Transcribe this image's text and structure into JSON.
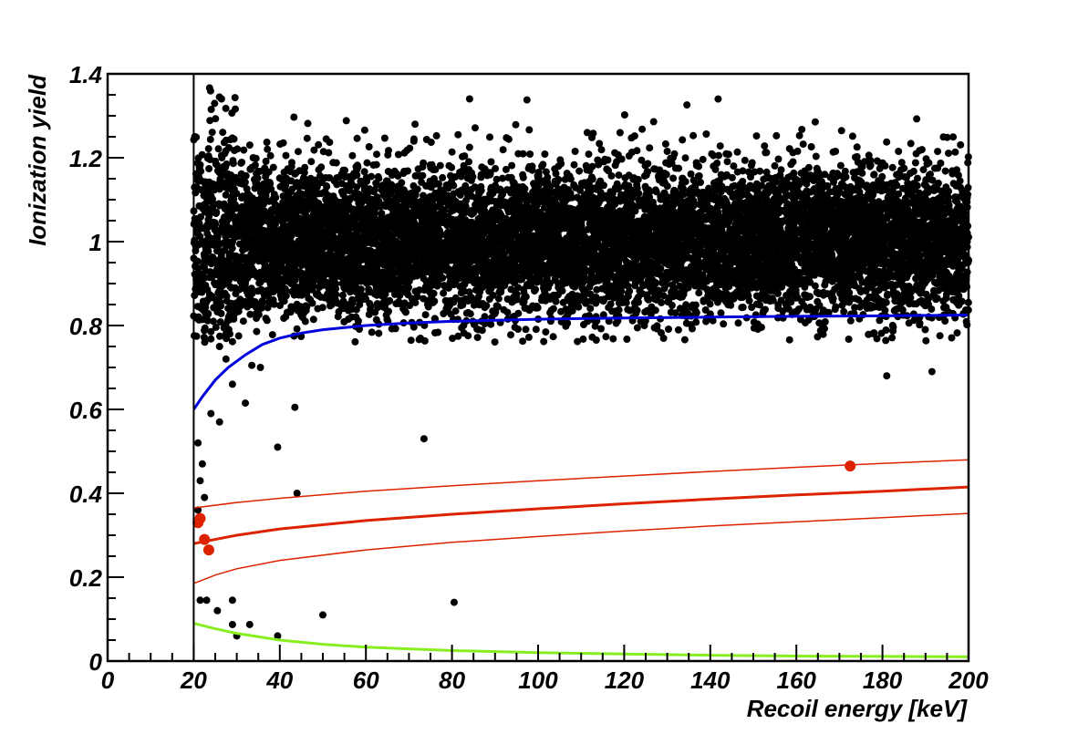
{
  "chart_data": {
    "type": "scatter",
    "xlabel": "Recoil energy [keV]",
    "ylabel": "Ionization yield",
    "xlim": [
      0,
      200
    ],
    "ylim": [
      0,
      1.4
    ],
    "x_ticks": [
      0,
      20,
      40,
      60,
      80,
      100,
      120,
      140,
      160,
      180,
      200
    ],
    "x_tick_labels": [
      "0",
      "20",
      "40",
      "60",
      "80",
      "100",
      "120",
      "140",
      "160",
      "180",
      "200"
    ],
    "y_ticks": [
      0,
      0.2,
      0.4,
      0.6,
      0.8,
      1,
      1.2,
      1.4
    ],
    "y_tick_labels": [
      "0",
      "0.2",
      "0.4",
      "0.6",
      "0.8",
      "1",
      "1.2",
      "1.4"
    ],
    "grid": false,
    "threshold_line_x": 20,
    "colors": {
      "electron_recoils": "#000000",
      "nuclear_recoil_candidates": "#dd2200",
      "electron_recoil_lower_bound": "#0000dd",
      "nuclear_recoil_band": "#dd2200",
      "gamma_cut": "#88ee22"
    },
    "electron_band_cloud": {
      "x_range": [
        20,
        200
      ],
      "y_center": 1.0,
      "y_spread": 0.09,
      "approx_point_count": 9000
    },
    "outlier_points": [
      [
        21,
        0.52
      ],
      [
        22,
        0.47
      ],
      [
        21.5,
        0.43
      ],
      [
        22.5,
        0.39
      ],
      [
        21,
        0.36
      ],
      [
        21.5,
        0.145
      ],
      [
        23,
        0.145
      ],
      [
        25.5,
        0.12
      ],
      [
        29,
        0.145
      ],
      [
        29,
        0.087
      ],
      [
        30,
        0.06
      ],
      [
        33,
        0.087
      ],
      [
        39.5,
        0.06
      ],
      [
        50,
        0.11
      ],
      [
        80.5,
        0.14
      ],
      [
        44,
        0.4
      ],
      [
        39.5,
        0.51
      ],
      [
        43.5,
        0.605
      ],
      [
        73.5,
        0.53
      ],
      [
        26,
        0.57
      ],
      [
        24,
        0.59
      ],
      [
        32,
        0.615
      ],
      [
        29,
        0.66
      ],
      [
        35.5,
        0.7
      ],
      [
        181,
        0.68
      ],
      [
        191.5,
        0.69
      ],
      [
        33.5,
        0.705
      ],
      [
        27.5,
        0.72
      ],
      [
        26,
        0.75
      ]
    ],
    "nuclear_recoil_points": [
      [
        21.5,
        0.34
      ],
      [
        21,
        0.33
      ],
      [
        22.5,
        0.29
      ],
      [
        23.5,
        0.265
      ],
      [
        172.5,
        0.465
      ]
    ],
    "series": [
      {
        "x": [
          20,
          22,
          25,
          28,
          32,
          36,
          40,
          45,
          50,
          60,
          70,
          80,
          100,
          120,
          140,
          160,
          180,
          200
        ],
        "y": [
          0.6,
          0.63,
          0.67,
          0.7,
          0.73,
          0.755,
          0.77,
          0.782,
          0.79,
          0.8,
          0.806,
          0.81,
          0.815,
          0.818,
          0.82,
          0.822,
          0.823,
          0.825
        ]
      },
      {
        "x": [
          20,
          30,
          40,
          60,
          80,
          100,
          120,
          140,
          160,
          180,
          200
        ],
        "y": [
          0.28,
          0.3,
          0.315,
          0.335,
          0.35,
          0.363,
          0.375,
          0.386,
          0.396,
          0.405,
          0.415
        ]
      },
      {
        "x": [
          20,
          30,
          40,
          60,
          80,
          100,
          120,
          140,
          160,
          180,
          200
        ],
        "y": [
          0.365,
          0.378,
          0.388,
          0.405,
          0.418,
          0.43,
          0.441,
          0.452,
          0.462,
          0.471,
          0.48
        ]
      },
      {
        "x": [
          20,
          25,
          30,
          40,
          60,
          80,
          100,
          120,
          140,
          160,
          180,
          200
        ],
        "y": [
          0.185,
          0.205,
          0.22,
          0.24,
          0.265,
          0.283,
          0.297,
          0.31,
          0.322,
          0.332,
          0.342,
          0.352
        ]
      },
      {
        "x": [
          20,
          25,
          30,
          40,
          50,
          60,
          80,
          100,
          120,
          140,
          160,
          180,
          200
        ],
        "y": [
          0.09,
          0.077,
          0.066,
          0.05,
          0.04,
          0.033,
          0.025,
          0.02,
          0.017,
          0.014,
          0.012,
          0.011,
          0.01
        ]
      }
    ]
  }
}
